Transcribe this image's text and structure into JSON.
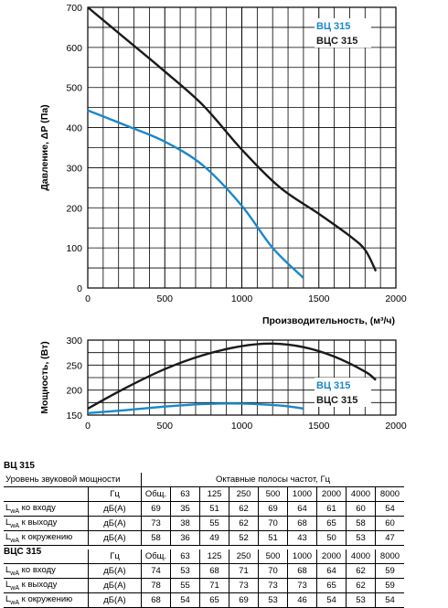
{
  "chart_data": [
    {
      "type": "line",
      "ylabel": "Давление, ΔР (Па)",
      "xlabel": "Производительность, (м³/ч)",
      "xlim": [
        0,
        2000
      ],
      "ylim": [
        0,
        700
      ],
      "xticks": [
        "0",
        "500",
        "1000",
        "1500",
        "2000"
      ],
      "yticks": [
        "0",
        "100",
        "200",
        "300",
        "400",
        "500",
        "600",
        "700"
      ],
      "grid": true,
      "legend": "top-right",
      "series": [
        {
          "name": "ВЦ 315",
          "color": "#1a87c9",
          "x": [
            0,
            250,
            500,
            750,
            1000,
            1200,
            1400
          ],
          "y": [
            443,
            405,
            365,
            305,
            205,
            100,
            25
          ]
        },
        {
          "name": "ВЦС 315",
          "color": "#1a1a1a",
          "x": [
            0,
            250,
            500,
            750,
            1000,
            1250,
            1500,
            1700,
            1800,
            1870
          ],
          "y": [
            700,
            620,
            540,
            455,
            345,
            250,
            185,
            130,
            95,
            42
          ]
        }
      ]
    },
    {
      "type": "line",
      "ylabel": "Мощность, (Вт)",
      "xlim": [
        0,
        2000
      ],
      "ylim": [
        150,
        300
      ],
      "xticks": [
        "0",
        "500",
        "1000",
        "1500",
        "2000"
      ],
      "yticks": [
        "150",
        "200",
        "250",
        "300"
      ],
      "grid": true,
      "legend": "right",
      "series": [
        {
          "name": "ВЦ 315",
          "color": "#1a87c9",
          "x": [
            0,
            250,
            500,
            750,
            1000,
            1250,
            1400
          ],
          "y": [
            154,
            160,
            167,
            172,
            173,
            169,
            163
          ]
        },
        {
          "name": "ВЦС 315",
          "color": "#1a1a1a",
          "x": [
            0,
            250,
            500,
            750,
            1000,
            1200,
            1400,
            1600,
            1800,
            1870
          ],
          "y": [
            163,
            205,
            242,
            270,
            288,
            293,
            286,
            267,
            237,
            220
          ]
        }
      ]
    }
  ],
  "tables": {
    "t1": {
      "title": "ВЦ 315",
      "header_left": "Уровень звуковой мощности",
      "bands_title": "Октавные полосы частот, Гц",
      "hz": "Гц",
      "cols": [
        "Общ.",
        "63",
        "125",
        "250",
        "500",
        "1000",
        "2000",
        "4000",
        "8000"
      ],
      "rows": [
        {
          "lbl_main": "L",
          "lbl_sub": "wA",
          "lbl_rest": " ко входу",
          "unit": "дБ(A)",
          "values": [
            "69",
            "35",
            "51",
            "62",
            "69",
            "64",
            "61",
            "60",
            "54"
          ]
        },
        {
          "lbl_main": "L",
          "lbl_sub": "wA",
          "lbl_rest": " к выходу",
          "unit": "дБ(A)",
          "values": [
            "73",
            "38",
            "55",
            "62",
            "70",
            "68",
            "65",
            "58",
            "60"
          ]
        },
        {
          "lbl_main": "L",
          "lbl_sub": "wA",
          "lbl_rest": " к окружению",
          "unit": "дБ(A)",
          "values": [
            "58",
            "36",
            "49",
            "52",
            "51",
            "43",
            "50",
            "53",
            "47"
          ]
        }
      ]
    },
    "t2": {
      "title": "ВЦС 315",
      "hz": "Гц",
      "cols": [
        "Общ.",
        "63",
        "125",
        "250",
        "500",
        "1000",
        "2000",
        "4000",
        "8000"
      ],
      "rows": [
        {
          "lbl_main": "L",
          "lbl_sub": "wA",
          "lbl_rest": " ко входу",
          "unit": "дБ(A)",
          "values": [
            "74",
            "53",
            "68",
            "71",
            "70",
            "68",
            "64",
            "62",
            "59"
          ]
        },
        {
          "lbl_main": "L",
          "lbl_sub": "wA",
          "lbl_rest": " к выходу",
          "unit": "дБ(A)",
          "values": [
            "78",
            "55",
            "71",
            "73",
            "73",
            "73",
            "65",
            "62",
            "59"
          ]
        },
        {
          "lbl_main": "L",
          "lbl_sub": "wA",
          "lbl_rest": " к окружению",
          "unit": "дБ(A)",
          "values": [
            "68",
            "54",
            "65",
            "69",
            "53",
            "46",
            "54",
            "53",
            "54"
          ]
        }
      ]
    }
  }
}
